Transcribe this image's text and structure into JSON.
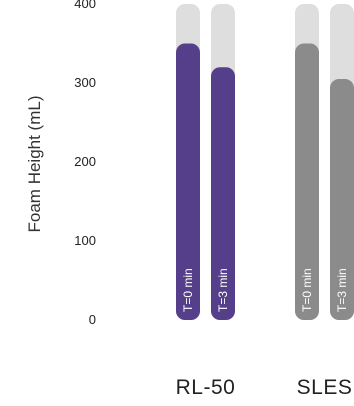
{
  "chart_data": {
    "type": "bar",
    "ylabel": "Foam Height (mL)",
    "ylim": [
      0,
      400
    ],
    "yticks": [
      0,
      100,
      200,
      300,
      400
    ],
    "categories": [
      "RL-50",
      "SLES"
    ],
    "series": [
      {
        "name": "T=0 min",
        "values": [
          350,
          350
        ]
      },
      {
        "name": "T=3 min",
        "values": [
          320,
          305
        ]
      }
    ],
    "colors": {
      "RL-50": "#553f8a",
      "SLES": "#8b8b8b",
      "track": "#dedede"
    },
    "grid": false
  }
}
